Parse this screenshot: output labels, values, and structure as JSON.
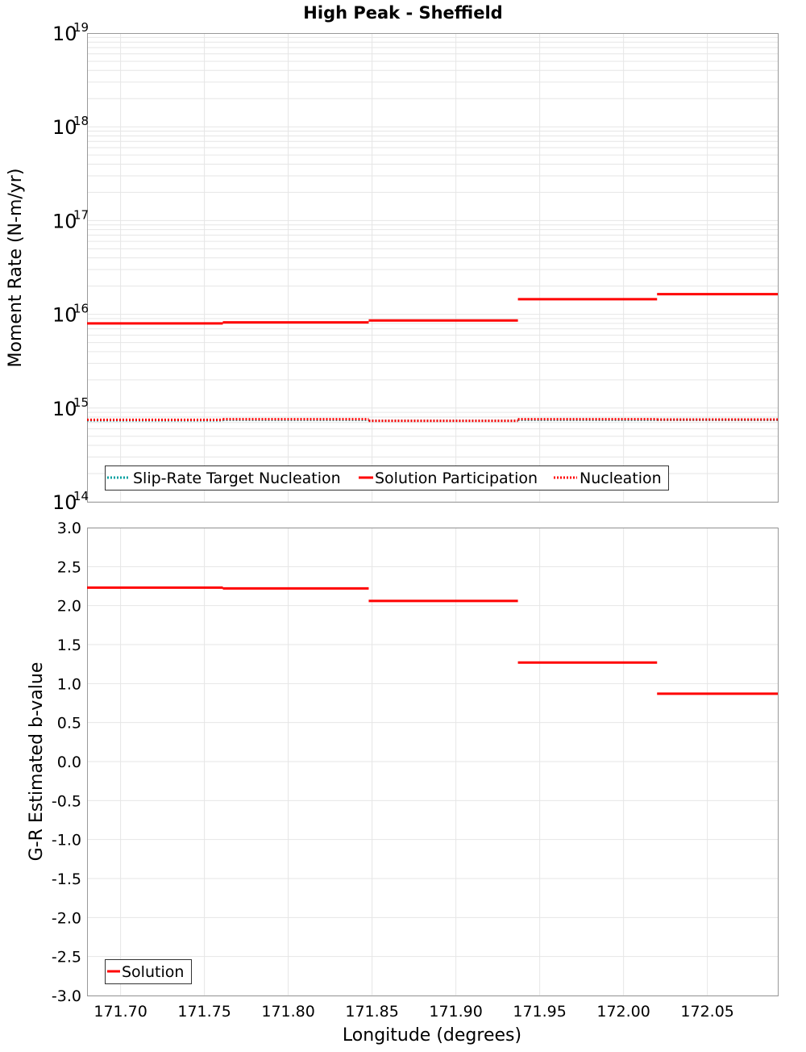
{
  "chart_data": [
    {
      "type": "line",
      "title": "High Peak - Sheffield",
      "xlabel": "Longitude (degrees)",
      "ylabel": "Moment Rate (N-m/yr)",
      "yscale": "log",
      "ylim": [
        100000000000000.0,
        1e+19
      ],
      "xlim": [
        171.68,
        172.092
      ],
      "y_tick_labels": [
        {
          "base": "10",
          "exp": "14",
          "value": 100000000000000.0
        },
        {
          "base": "10",
          "exp": "15",
          "value": 1000000000000000.0
        },
        {
          "base": "10",
          "exp": "16",
          "value": 1e+16
        },
        {
          "base": "10",
          "exp": "17",
          "value": 1e+17
        },
        {
          "base": "10",
          "exp": "18",
          "value": 1e+18
        },
        {
          "base": "10",
          "exp": "19",
          "value": 1e+19
        }
      ],
      "grid": true,
      "legend_position": "bottom-left",
      "segment_bounds": [
        171.68,
        171.761,
        171.848,
        171.937,
        172.02,
        172.092
      ],
      "series": [
        {
          "name": "Slip-Rate Target Nucleation",
          "color": "#00a0a0",
          "style": "dotted",
          "values": [
            740000000000000.0,
            750000000000000.0,
            730000000000000.0,
            750000000000000.0,
            750000000000000.0
          ]
        },
        {
          "name": "Solution Participation",
          "color": "#ff0000",
          "style": "solid",
          "values": [
            8000000000000000.0,
            8200000000000000.0,
            8600000000000000.0,
            1.45e+16,
            1.64e+16
          ]
        },
        {
          "name": "Nucleation",
          "color": "#ff0000",
          "style": "dotted",
          "values": [
            750000000000000.0,
            760000000000000.0,
            730000000000000.0,
            760000000000000.0,
            755000000000000.0
          ]
        }
      ]
    },
    {
      "type": "line",
      "xlabel": "Longitude (degrees)",
      "ylabel": "G-R Estimated b-value",
      "ylim": [
        -3.0,
        3.0
      ],
      "xlim": [
        171.68,
        172.092
      ],
      "y_ticks": [
        "3.0",
        "2.5",
        "2.0",
        "1.5",
        "1.0",
        "0.5",
        "0.0",
        "-0.5",
        "-1.0",
        "-1.5",
        "-2.0",
        "-2.5",
        "-3.0"
      ],
      "x_ticks": [
        "171.70",
        "171.75",
        "171.80",
        "171.85",
        "171.90",
        "171.95",
        "172.00",
        "172.05"
      ],
      "grid": true,
      "legend_position": "bottom-left",
      "segment_bounds": [
        171.68,
        171.761,
        171.848,
        171.937,
        172.02,
        172.092
      ],
      "series": [
        {
          "name": "Solution",
          "color": "#ff0000",
          "style": "solid",
          "values": [
            2.23,
            2.22,
            2.06,
            1.27,
            0.87
          ]
        }
      ]
    }
  ]
}
